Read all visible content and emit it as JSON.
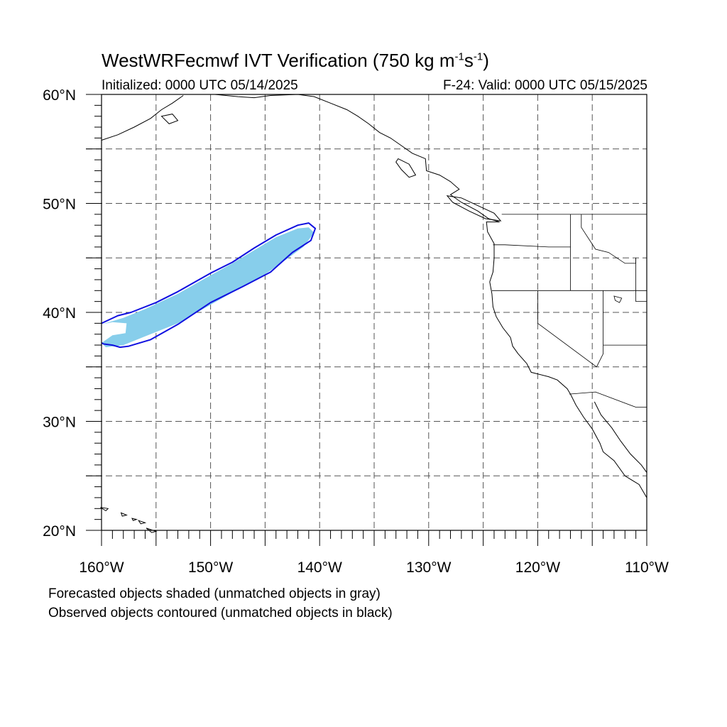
{
  "header": {
    "title_main": "WestWRFecmwf IVT Verification (750 kg m",
    "title_sup1": "-1",
    "title_mid": "s",
    "title_sup2": "-1",
    "title_end": ")",
    "initialized": "Initialized: 0000 UTC 05/14/2025",
    "valid": "F-24: Valid: 0000 UTC 05/15/2025"
  },
  "map": {
    "lon_range": [
      -160,
      -110
    ],
    "lat_range": [
      20,
      60
    ],
    "lat_labels": [
      {
        "value": 60,
        "text": "60°N"
      },
      {
        "value": 50,
        "text": "50°N"
      },
      {
        "value": 40,
        "text": "40°N"
      },
      {
        "value": 30,
        "text": "30°N"
      },
      {
        "value": 20,
        "text": "20°N"
      }
    ],
    "lon_labels": [
      {
        "value": -160,
        "text": "160°W"
      },
      {
        "value": -150,
        "text": "150°W"
      },
      {
        "value": -140,
        "text": "140°W"
      },
      {
        "value": -130,
        "text": "130°W"
      },
      {
        "value": -120,
        "text": "120°W"
      },
      {
        "value": -110,
        "text": "110°W"
      }
    ],
    "grid_lon_step": 5,
    "grid_lat_step": 5,
    "colors": {
      "forecast_fill": "#87ceeb",
      "observed_contour": "#1010e0",
      "coastline": "#000000",
      "grid": "#555555"
    },
    "forecast_object": [
      [
        -160,
        38.9
      ],
      [
        -158,
        39.5
      ],
      [
        -156,
        40.3
      ],
      [
        -153,
        41.7
      ],
      [
        -150,
        43.4
      ],
      [
        -148,
        44.5
      ],
      [
        -146,
        45.7
      ],
      [
        -144,
        46.9
      ],
      [
        -142,
        47.7
      ],
      [
        -141,
        47.8
      ],
      [
        -140.5,
        47.3
      ],
      [
        -141.5,
        46.0
      ],
      [
        -143,
        44.9
      ],
      [
        -145,
        43.5
      ],
      [
        -147,
        42.4
      ],
      [
        -150,
        40.7
      ],
      [
        -153,
        39.0
      ],
      [
        -156,
        37.8
      ],
      [
        -158,
        37.0
      ],
      [
        -159.6,
        36.8
      ],
      [
        -160,
        37.2
      ],
      [
        -159,
        37.9
      ],
      [
        -157.8,
        38.1
      ],
      [
        -157.7,
        39.0
      ],
      [
        -159,
        39.1
      ],
      [
        -160,
        38.9
      ]
    ],
    "observed_object": [
      [
        -160,
        39.0
      ],
      [
        -158.5,
        39.7
      ],
      [
        -157.3,
        40.0
      ],
      [
        -155,
        40.9
      ],
      [
        -153,
        41.9
      ],
      [
        -150,
        43.6
      ],
      [
        -148,
        44.6
      ],
      [
        -146,
        45.9
      ],
      [
        -144,
        47.1
      ],
      [
        -142,
        48.0
      ],
      [
        -141,
        48.2
      ],
      [
        -140.4,
        47.7
      ],
      [
        -140.8,
        46.6
      ],
      [
        -142.5,
        45.5
      ],
      [
        -144.5,
        43.7
      ],
      [
        -147,
        42.4
      ],
      [
        -150,
        40.9
      ],
      [
        -153,
        38.9
      ],
      [
        -155.5,
        37.5
      ],
      [
        -157.5,
        36.9
      ],
      [
        -158.3,
        36.8
      ],
      [
        -159,
        37.0
      ],
      [
        -159.8,
        37.1
      ],
      [
        -160,
        37.2
      ]
    ],
    "coastline": [
      [
        -160,
        55.8
      ],
      [
        -158.5,
        56.3
      ],
      [
        -157,
        57.0
      ],
      [
        -155.5,
        57.8
      ],
      [
        -154.5,
        58.6
      ],
      [
        -153.5,
        59.2
      ],
      [
        -152.5,
        59.9
      ]
    ],
    "coastline2": [
      [
        -154.5,
        58.0
      ],
      [
        -153.5,
        58.2
      ],
      [
        -153.0,
        57.6
      ],
      [
        -153.8,
        57.3
      ],
      [
        -154.5,
        58.0
      ]
    ],
    "coastline3": [
      [
        -149.6,
        60.0
      ],
      [
        -147.5,
        59.8
      ],
      [
        -146,
        59.7
      ],
      [
        -144.5,
        59.9
      ],
      [
        -142,
        60.0
      ],
      [
        -140.5,
        59.8
      ],
      [
        -139,
        59.2
      ],
      [
        -137.5,
        58.6
      ],
      [
        -136.5,
        58.0
      ],
      [
        -135.5,
        57.3
      ],
      [
        -134.5,
        56.5
      ],
      [
        -133.5,
        56.0
      ],
      [
        -132.5,
        55.3
      ],
      [
        -131.5,
        54.6
      ],
      [
        -130.3,
        54.1
      ],
      [
        -130.2,
        53.0
      ],
      [
        -129.0,
        52.6
      ],
      [
        -128.0,
        52.0
      ],
      [
        -127.2,
        51.3
      ],
      [
        -128.0,
        50.8
      ],
      [
        -127.0,
        50.1
      ],
      [
        -125.5,
        49.3
      ],
      [
        -124.5,
        48.6
      ],
      [
        -123.5,
        48.3
      ],
      [
        -124.7,
        48.3
      ],
      [
        -124.6,
        47.4
      ],
      [
        -124.0,
        46.3
      ],
      [
        -124.0,
        45.0
      ],
      [
        -124.1,
        43.7
      ],
      [
        -124.4,
        42.8
      ],
      [
        -124.2,
        41.7
      ],
      [
        -124.1,
        40.5
      ],
      [
        -123.8,
        39.6
      ],
      [
        -123.2,
        38.6
      ],
      [
        -122.5,
        37.7
      ],
      [
        -122.3,
        36.9
      ],
      [
        -121.8,
        36.2
      ],
      [
        -121.0,
        35.3
      ],
      [
        -120.6,
        34.5
      ],
      [
        -119.0,
        34.1
      ],
      [
        -118.2,
        33.8
      ],
      [
        -117.3,
        33.0
      ],
      [
        -117.0,
        32.5
      ],
      [
        -116.5,
        31.5
      ],
      [
        -115.8,
        30.4
      ],
      [
        -115.0,
        29.3
      ],
      [
        -114.3,
        28.0
      ],
      [
        -114.0,
        27.2
      ],
      [
        -113.0,
        26.4
      ],
      [
        -112.0,
        25.0
      ],
      [
        -110.7,
        24.2
      ],
      [
        -110.0,
        23.0
      ]
    ],
    "gulf_coast": [
      [
        -114.8,
        31.8
      ],
      [
        -114.2,
        30.6
      ],
      [
        -113.2,
        29.4
      ],
      [
        -112.4,
        28.2
      ],
      [
        -111.5,
        27.0
      ],
      [
        -110.5,
        26.0
      ],
      [
        -110.0,
        25.3
      ]
    ],
    "vancouver_island": [
      [
        -128.3,
        50.7
      ],
      [
        -127.0,
        50.5
      ],
      [
        -125.5,
        49.8
      ],
      [
        -124.0,
        49.1
      ],
      [
        -123.4,
        48.4
      ],
      [
        -124.8,
        48.6
      ],
      [
        -126.3,
        49.3
      ],
      [
        -127.8,
        50.1
      ],
      [
        -128.3,
        50.7
      ]
    ],
    "haida_gwaii": [
      [
        -132.8,
        54.1
      ],
      [
        -131.8,
        53.6
      ],
      [
        -131.2,
        52.6
      ],
      [
        -131.8,
        52.4
      ],
      [
        -132.5,
        53.1
      ],
      [
        -133.0,
        53.8
      ],
      [
        -132.8,
        54.1
      ]
    ],
    "hawaii_islands": [
      [
        [
          -160.1,
          22.1
        ],
        [
          -159.4,
          22.0
        ],
        [
          -159.6,
          21.8
        ],
        [
          -160.1,
          22.1
        ]
      ],
      [
        [
          -158.2,
          21.6
        ],
        [
          -157.7,
          21.4
        ],
        [
          -158.1,
          21.3
        ],
        [
          -158.2,
          21.6
        ]
      ],
      [
        [
          -157.2,
          21.1
        ],
        [
          -156.8,
          21.0
        ],
        [
          -157.1,
          20.9
        ],
        [
          -157.2,
          21.1
        ]
      ],
      [
        [
          -156.6,
          20.9
        ],
        [
          -156.0,
          20.7
        ],
        [
          -156.4,
          20.6
        ],
        [
          -156.6,
          20.9
        ]
      ],
      [
        [
          -155.9,
          20.2
        ],
        [
          -155.0,
          19.9
        ],
        [
          -155.4,
          19.8
        ],
        [
          -155.9,
          20.2
        ]
      ]
    ],
    "boundaries": [
      [
        [
          -123.3,
          49.0
        ],
        [
          -110,
          49.0
        ]
      ],
      [
        [
          -124.1,
          46.2
        ],
        [
          -123,
          46.2
        ],
        [
          -119.0,
          46.0
        ],
        [
          -117.0,
          46.0
        ]
      ],
      [
        [
          -124.2,
          42.0
        ],
        [
          -110,
          42.0
        ]
      ],
      [
        [
          -117.0,
          49.0
        ],
        [
          -117.0,
          42.0
        ]
      ],
      [
        [
          -116.0,
          49.0
        ],
        [
          -116.0,
          47.8
        ],
        [
          -114.7,
          45.8
        ],
        [
          -113.5,
          45.5
        ],
        [
          -112,
          44.5
        ],
        [
          -111,
          44.5
        ],
        [
          -111.0,
          45.0
        ]
      ],
      [
        [
          -120.0,
          42.0
        ],
        [
          -120.0,
          39.0
        ],
        [
          -114.6,
          35.0
        ]
      ],
      [
        [
          -114.6,
          35.0
        ],
        [
          -114.0,
          36.2
        ],
        [
          -114.0,
          42.0
        ]
      ],
      [
        [
          -114.0,
          37.0
        ],
        [
          -110,
          37.0
        ]
      ],
      [
        [
          -117.1,
          32.5
        ],
        [
          -114.7,
          32.7
        ],
        [
          -111.0,
          31.3
        ],
        [
          -110,
          31.3
        ]
      ],
      [
        [
          -111.0,
          45.0
        ],
        [
          -111.0,
          41.0
        ],
        [
          -110,
          41.0
        ]
      ]
    ],
    "lakes": [
      [
        [
          -113.0,
          41.5
        ],
        [
          -112.3,
          41.3
        ],
        [
          -112.5,
          40.9
        ],
        [
          -112.9,
          41.1
        ],
        [
          -113.0,
          41.5
        ]
      ]
    ]
  },
  "footnotes": {
    "line1": "Forecasted objects shaded (unmatched objects in gray)",
    "line2": "Observed objects contoured (unmatched objects in black)"
  }
}
